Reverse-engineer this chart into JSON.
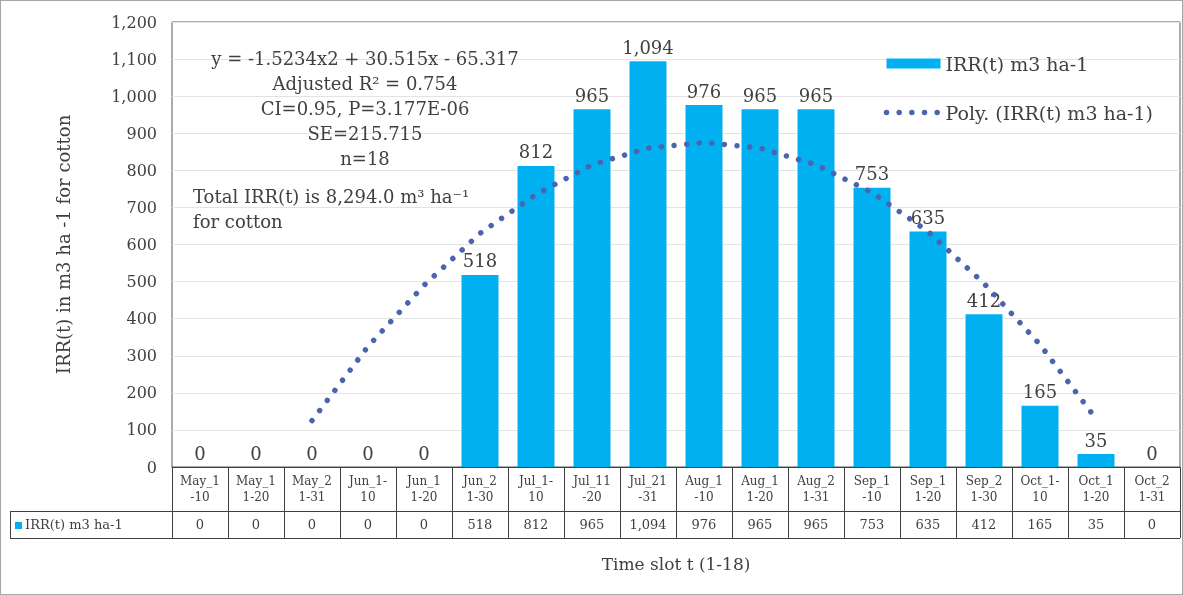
{
  "chart_data": {
    "type": "bar",
    "xlabel": "Time slot t (1-18)",
    "ylabel": "IRR(t) in m3 ha -1 for cotton",
    "categories": [
      "May_1-10",
      "May_11-20",
      "May_21-31",
      "Jun_1-10",
      "Jun_11-20",
      "Jun_21-30",
      "Jul_1-10",
      "Jul_11-20",
      "Jul_21-31",
      "Aug_1-10",
      "Aug_11-20",
      "Aug_21-31",
      "Sep_1-10",
      "Sep_11-20",
      "Sep_21-30",
      "Oct_1-10",
      "Oct_11-20",
      "Oct_21-31"
    ],
    "series": [
      {
        "name": "IRR(t) m3 ha-1",
        "color": "#00b0f0",
        "values": [
          0,
          0,
          0,
          0,
          0,
          518,
          812,
          965,
          1094,
          976,
          965,
          965,
          753,
          635,
          412,
          165,
          35,
          0
        ],
        "value_labels": [
          "0",
          "0",
          "0",
          "0",
          "0",
          "518",
          "812",
          "965",
          "1,094",
          "976",
          "965",
          "965",
          "753",
          "635",
          "412",
          "165",
          "35",
          "0"
        ]
      },
      {
        "type": "line",
        "name": "Poly. (IRR(t) m3 ha-1)",
        "color": "#4a64ad",
        "line_style": "dotted",
        "values": [
          null,
          null,
          125,
          325,
          490,
          630,
          735,
          815,
          860,
          875,
          860,
          815,
          740,
          635,
          495,
          330,
          130,
          null
        ]
      }
    ],
    "ylim": [
      0,
      1200
    ],
    "yticks": [
      0,
      100,
      200,
      300,
      400,
      500,
      600,
      700,
      800,
      900,
      {
        "value": 1000,
        "label": "1,000"
      },
      {
        "value": 1100,
        "label": "1,100"
      },
      {
        "value": 1200,
        "label": "1,200"
      }
    ],
    "grid": "y",
    "legend": "top right",
    "annotations": [
      "y = -1.5234x2 + 30.515x - 65.317\nAdjusted R² = 0.754\nCI=0.95, P=3.177E-06\nSE=215.715\nn=18",
      "Total IRR(t) is 8,294.0 m³ ha⁻¹\nfor cotton"
    ]
  }
}
